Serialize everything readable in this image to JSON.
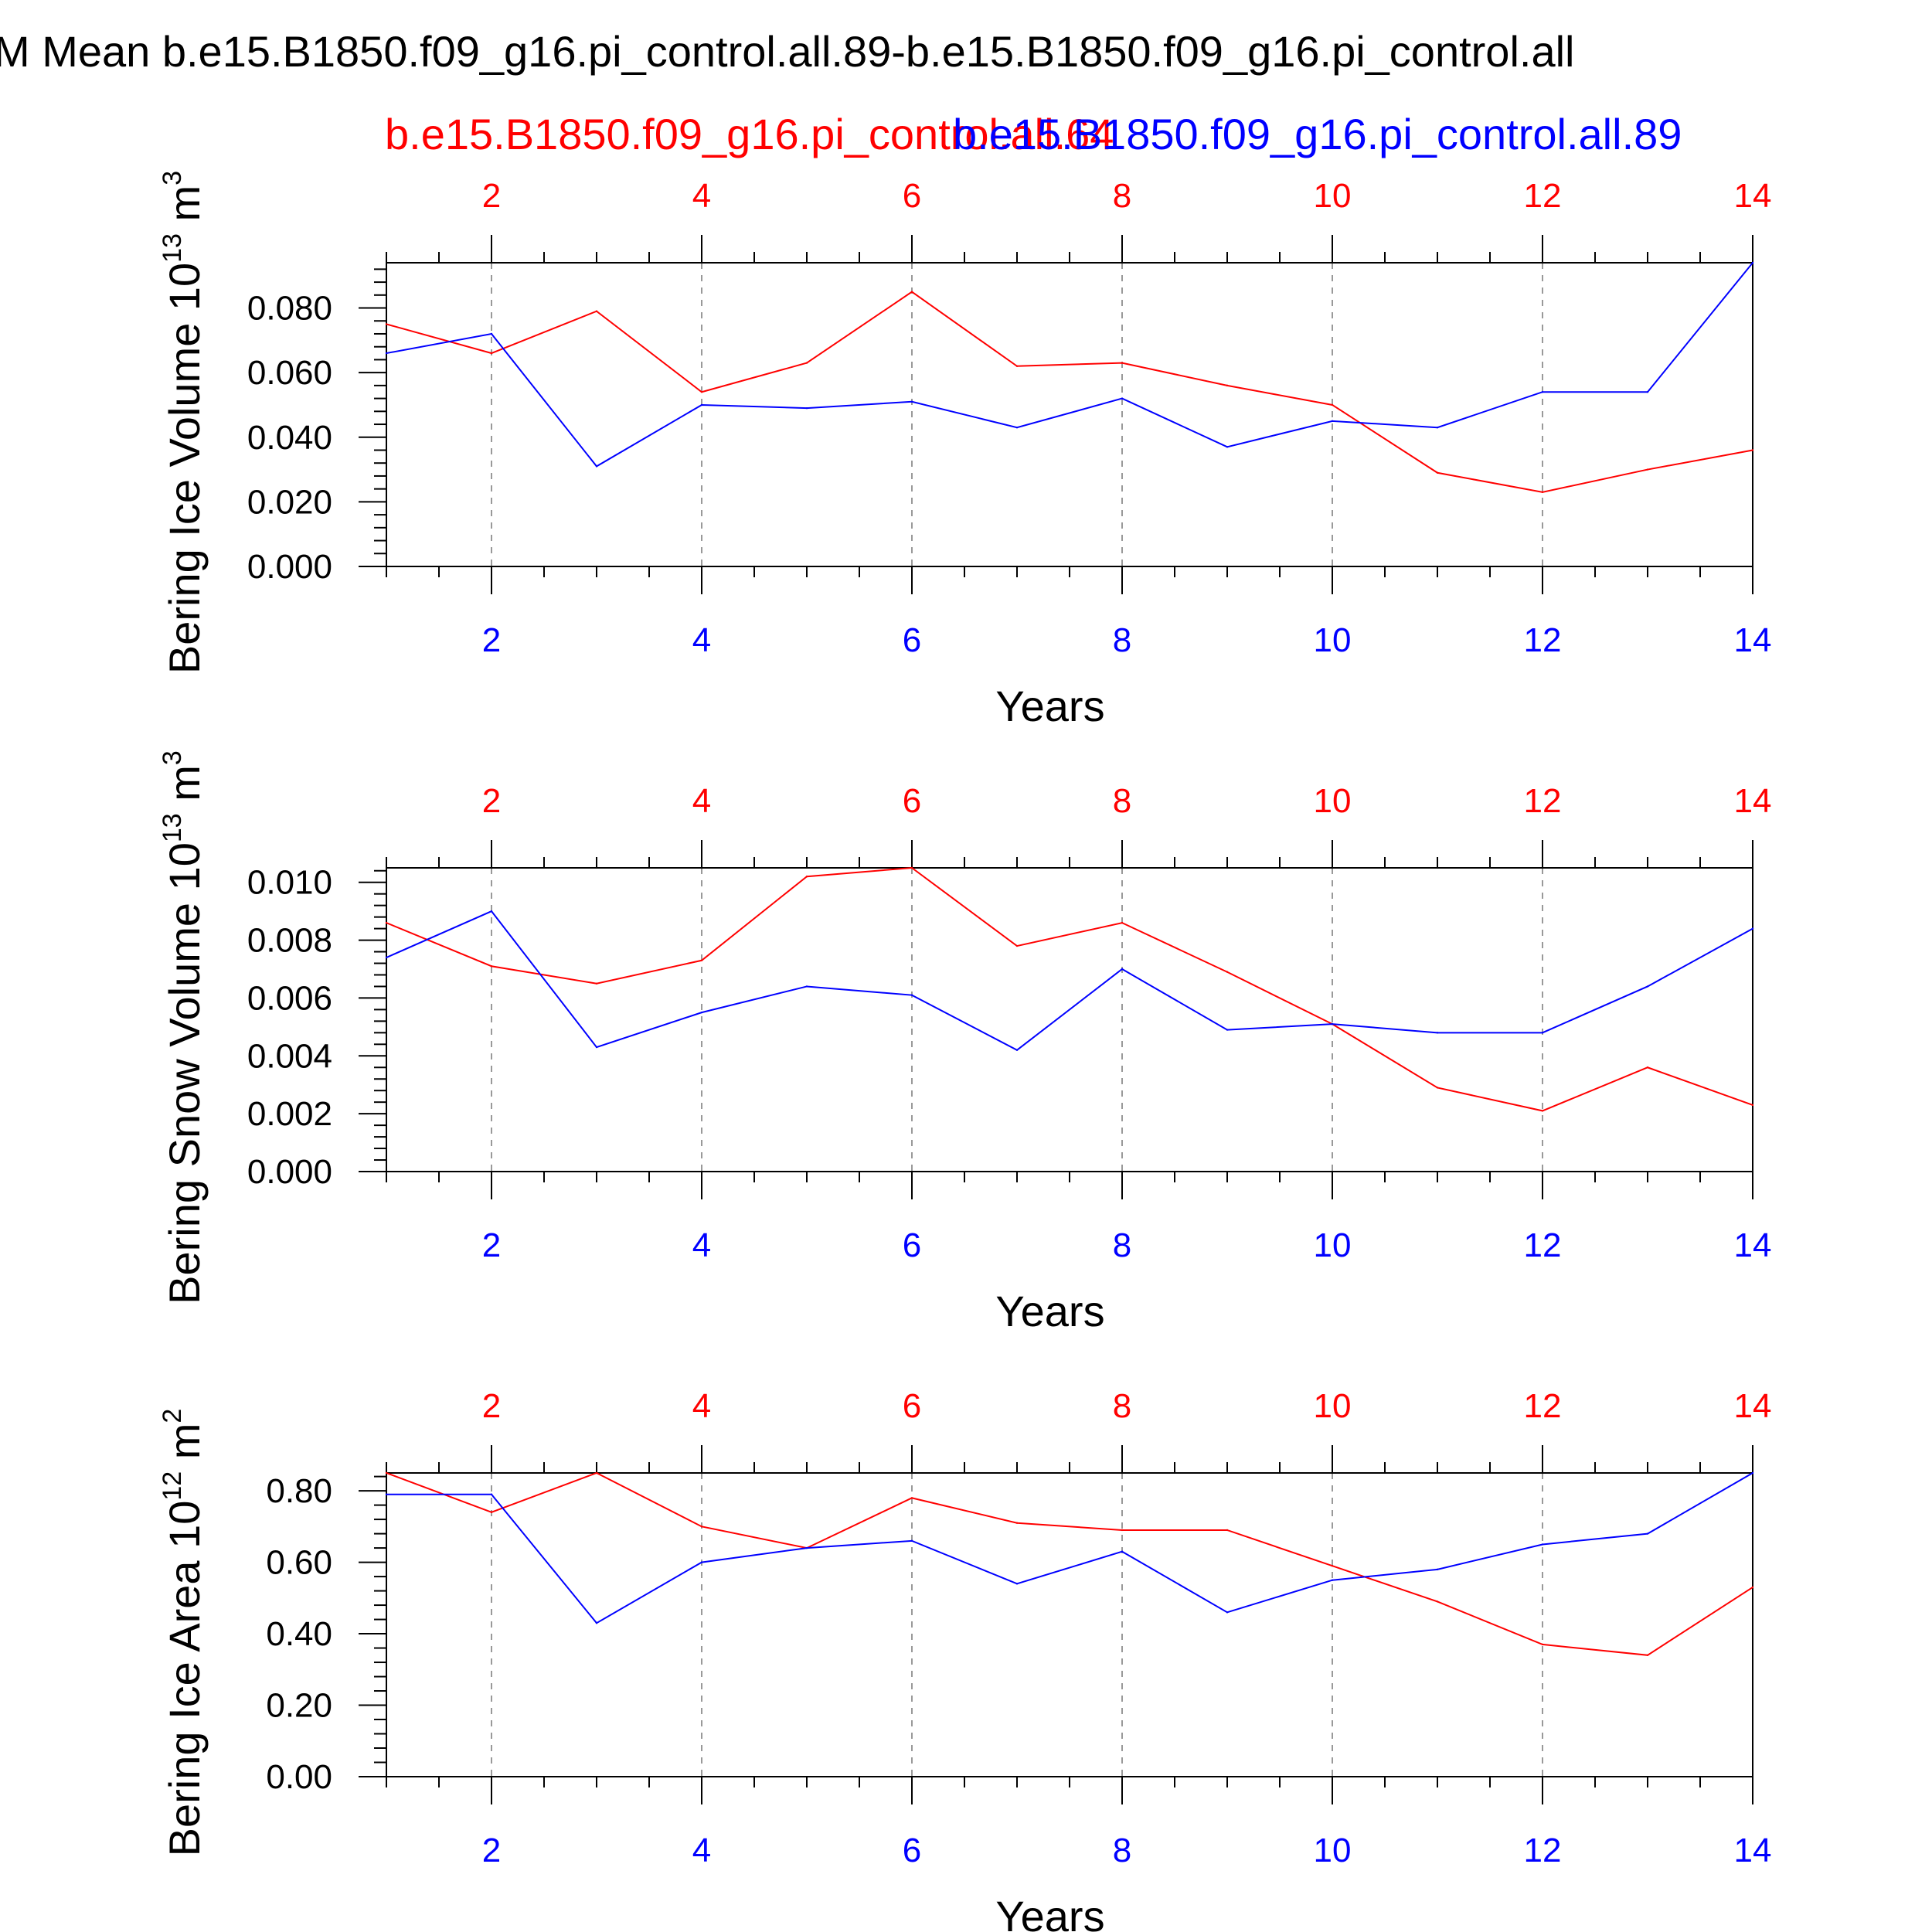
{
  "title": "M Mean b.e15.B1850.f09_g16.pi_control.all.89-b.e15.B1850.f09_g16.pi_control.all",
  "subtitle_red": "b.e15.B1850.f09_g16.pi_control.all.64",
  "subtitle_blue": "b.e15.B1850.f09_g16.pi_control.all.89",
  "colors": {
    "red": "#ff0000",
    "blue": "#0000ff",
    "axis": "#000000",
    "grid": "#999999"
  },
  "chart_data": [
    {
      "type": "line",
      "ylabel": "Bering Ice Volume 10",
      "ylabel_exp": "13",
      "ylabel_unit": " m",
      "ylabel_unit_exp": "3",
      "xlabel": "Years",
      "xlim": [
        1,
        14
      ],
      "ylim": [
        0,
        0.094
      ],
      "x_ticks": [
        2,
        4,
        6,
        8,
        10,
        12,
        14
      ],
      "y_ticks": [
        "0.000",
        "0.020",
        "0.040",
        "0.060",
        "0.080"
      ],
      "y_tick_values": [
        0,
        0.02,
        0.04,
        0.06,
        0.08
      ],
      "x": [
        1,
        2,
        3,
        4,
        5,
        6,
        7,
        8,
        9,
        10,
        11,
        12,
        13,
        14
      ],
      "series": [
        {
          "name": "b.e15.B1850.f09_g16.pi_control.all.64",
          "color": "red",
          "values": [
            0.075,
            0.066,
            0.079,
            0.054,
            0.063,
            0.085,
            0.062,
            0.063,
            0.056,
            0.05,
            0.029,
            0.023,
            0.03,
            0.036
          ]
        },
        {
          "name": "b.e15.B1850.f09_g16.pi_control.all.89",
          "color": "blue",
          "values": [
            0.066,
            0.072,
            0.031,
            0.05,
            0.049,
            0.051,
            0.043,
            0.052,
            0.037,
            0.045,
            0.043,
            0.054,
            0.054,
            0.094
          ]
        }
      ]
    },
    {
      "type": "line",
      "ylabel": "Bering Snow Volume 10",
      "ylabel_exp": "13",
      "ylabel_unit": " m",
      "ylabel_unit_exp": "3",
      "xlabel": "Years",
      "xlim": [
        1,
        14
      ],
      "ylim": [
        0,
        0.0105
      ],
      "x_ticks": [
        2,
        4,
        6,
        8,
        10,
        12,
        14
      ],
      "y_ticks": [
        "0.000",
        "0.002",
        "0.004",
        "0.006",
        "0.008",
        "0.010"
      ],
      "y_tick_values": [
        0,
        0.002,
        0.004,
        0.006,
        0.008,
        0.01
      ],
      "x": [
        1,
        2,
        3,
        4,
        5,
        6,
        7,
        8,
        9,
        10,
        11,
        12,
        13,
        14
      ],
      "series": [
        {
          "name": "b.e15.B1850.f09_g16.pi_control.all.64",
          "color": "red",
          "values": [
            0.0086,
            0.0071,
            0.0065,
            0.0073,
            0.0102,
            0.0105,
            0.0078,
            0.0086,
            0.0069,
            0.0051,
            0.0029,
            0.0021,
            0.0036,
            0.0023
          ]
        },
        {
          "name": "b.e15.B1850.f09_g16.pi_control.all.89",
          "color": "blue",
          "values": [
            0.0074,
            0.009,
            0.0043,
            0.0055,
            0.0064,
            0.0061,
            0.0042,
            0.007,
            0.0049,
            0.0051,
            0.0048,
            0.0048,
            0.0064,
            0.0084
          ]
        }
      ]
    },
    {
      "type": "line",
      "ylabel": "Bering Ice Area 10",
      "ylabel_exp": "12",
      "ylabel_unit": " m",
      "ylabel_unit_exp": "2",
      "xlabel": "Years",
      "xlim": [
        1,
        14
      ],
      "ylim": [
        0,
        0.85
      ],
      "x_ticks": [
        2,
        4,
        6,
        8,
        10,
        12,
        14
      ],
      "y_ticks": [
        "0.00",
        "0.20",
        "0.40",
        "0.60",
        "0.80"
      ],
      "y_tick_values": [
        0,
        0.2,
        0.4,
        0.6,
        0.8
      ],
      "x": [
        1,
        2,
        3,
        4,
        5,
        6,
        7,
        8,
        9,
        10,
        11,
        12,
        13,
        14
      ],
      "series": [
        {
          "name": "b.e15.B1850.f09_g16.pi_control.all.64",
          "color": "red",
          "values": [
            0.85,
            0.74,
            0.85,
            0.7,
            0.64,
            0.78,
            0.71,
            0.69,
            0.69,
            0.59,
            0.49,
            0.37,
            0.34,
            0.53
          ]
        },
        {
          "name": "b.e15.B1850.f09_g16.pi_control.all.89",
          "color": "blue",
          "values": [
            0.79,
            0.79,
            0.43,
            0.6,
            0.64,
            0.66,
            0.54,
            0.63,
            0.46,
            0.55,
            0.58,
            0.65,
            0.68,
            0.85
          ]
        }
      ]
    }
  ]
}
